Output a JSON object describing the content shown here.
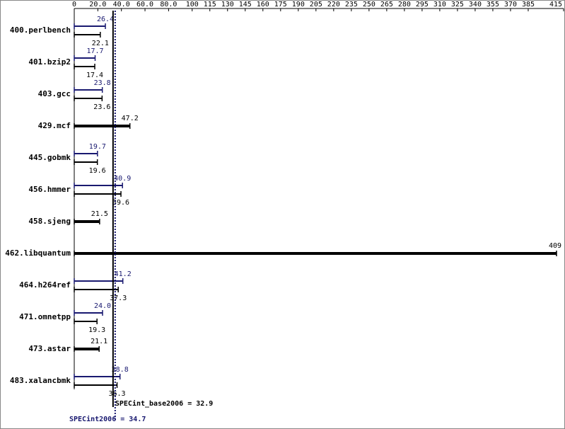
{
  "chart_data": {
    "type": "spec-bar",
    "categories": [
      "400.perlbench",
      "401.bzip2",
      "403.gcc",
      "429.mcf",
      "445.gobmk",
      "456.hmmer",
      "458.sjeng",
      "462.libquantum",
      "464.h264ref",
      "471.omnetpp",
      "473.astar",
      "483.xalancbmk"
    ],
    "series": [
      {
        "color": "#000000",
        "values": [
          22.1,
          17.4,
          23.6,
          47.2,
          19.6,
          39.6,
          21.5,
          409,
          37.3,
          19.3,
          21.1,
          36.3
        ],
        "value_labels": [
          "22.1",
          "17.4",
          "23.6",
          "47.2",
          "19.6",
          "39.6",
          "21.5",
          "409",
          "37.3",
          "19.3",
          "21.1",
          "36.3"
        ]
      },
      {
        "color": "#191970",
        "values": [
          26.4,
          17.7,
          23.8,
          null,
          19.7,
          40.9,
          null,
          null,
          41.2,
          24.0,
          null,
          38.8
        ],
        "value_labels": [
          "26.4",
          "17.7",
          "23.8",
          null,
          "19.7",
          "40.9",
          null,
          null,
          "41.2",
          "24.0",
          null,
          "38.8"
        ]
      }
    ],
    "xlim": [
      0,
      415
    ],
    "xticks": [
      0,
      {
        "value": 20,
        "label": "20.0"
      },
      {
        "value": 40,
        "label": "40.0"
      },
      {
        "value": 60,
        "label": "60.0"
      },
      {
        "value": 80,
        "label": "80.0"
      },
      100,
      115,
      130,
      145,
      160,
      175,
      190,
      205,
      220,
      235,
      250,
      265,
      280,
      295,
      310,
      325,
      340,
      355,
      370,
      385,
      415
    ],
    "reference_lines": [
      {
        "label": "SPECint_base2006 = 32.9",
        "value": 32.9,
        "color": "#000000",
        "style": "solid"
      },
      {
        "label": "SPECint2006 = 34.7",
        "value": 34.7,
        "color": "#191970",
        "style": "dotted"
      }
    ]
  }
}
